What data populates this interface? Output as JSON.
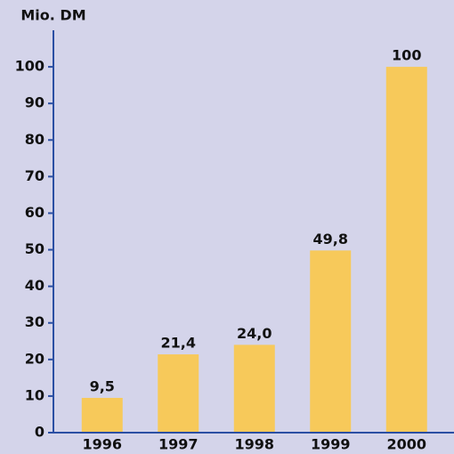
{
  "chart_data": {
    "type": "bar",
    "title": "Mio. DM",
    "categories": [
      "1996",
      "1997",
      "1998",
      "1999",
      "2000"
    ],
    "values": [
      9.5,
      21.4,
      24.0,
      49.8,
      100
    ],
    "value_labels": [
      "9,5",
      "21,4",
      "24,0",
      "49,8",
      "100"
    ],
    "color": "#f7c95a",
    "ylim": [
      0,
      110
    ],
    "yticks": [
      0,
      10,
      20,
      30,
      40,
      50,
      60,
      70,
      80,
      90,
      100
    ]
  }
}
